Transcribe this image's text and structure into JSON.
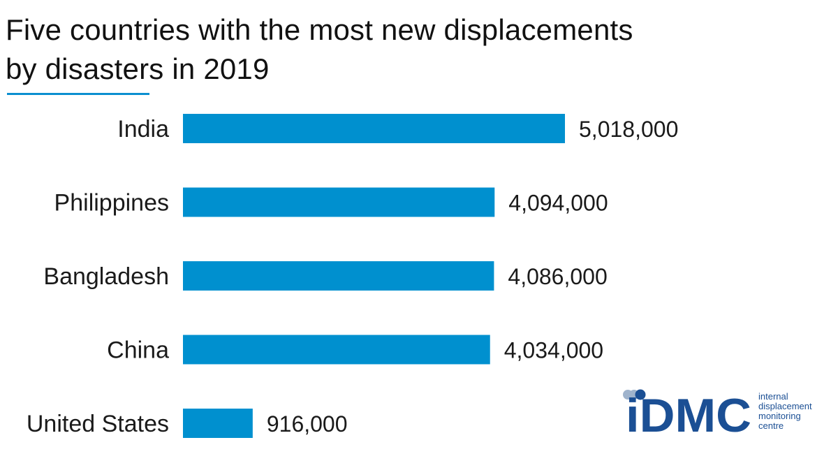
{
  "title": {
    "line1": "Five countries with the most new displacements",
    "line2": "by disasters in 2019"
  },
  "colors": {
    "bar": "#0090cf",
    "title_underline": "#0b8fd0",
    "logo_main": "#1b4f94",
    "logo_dots": "#9fb3cc",
    "text": "#1a1a1a"
  },
  "chart_data": {
    "type": "bar",
    "orientation": "horizontal",
    "title": "Five countries with the most new displacements by disasters in 2019",
    "categories": [
      "India",
      "Philippines",
      "Bangladesh",
      "China",
      "United States"
    ],
    "values": [
      5018000,
      4094000,
      4086000,
      4034000,
      916000
    ],
    "value_labels": [
      "5,018,000",
      "4,094,000",
      "4,086,000",
      "4,034,000",
      "916,000"
    ],
    "xlabel": "",
    "ylabel": "",
    "grid": false,
    "legend": "none"
  },
  "logo": {
    "wordmark": "iDMC",
    "tagline_lines": [
      "internal",
      "displacement",
      "monitoring",
      "centre"
    ]
  }
}
